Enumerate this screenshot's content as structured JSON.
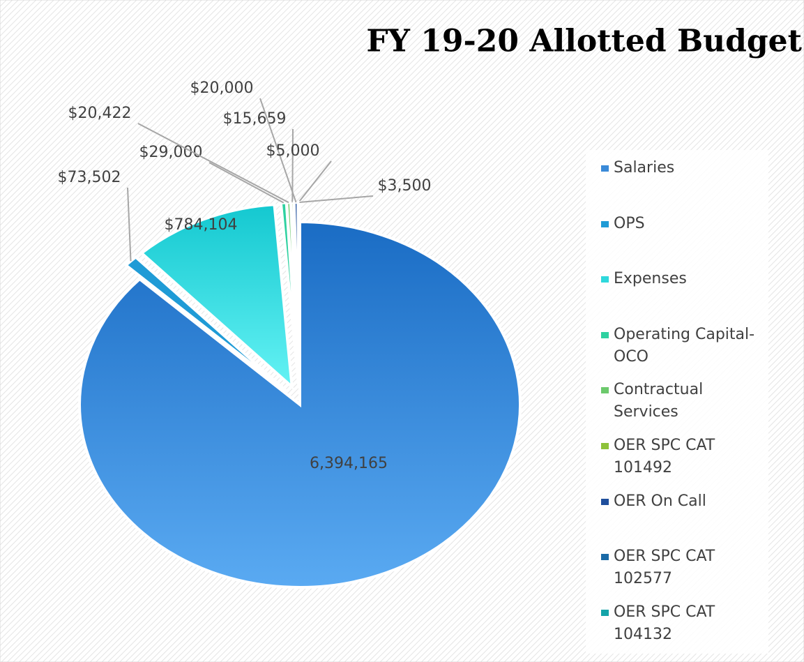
{
  "chart_data": {
    "type": "pie",
    "title": "FY 19-20  Allotted Budget",
    "categories": [
      "Salaries",
      "OPS",
      "Expenses",
      "Operating Capital- OCO",
      "Contractual Services",
      "OER SPC CAT 101492",
      "OER On Call",
      "OER SPC CAT 102577",
      "OER SPC CAT 104132"
    ],
    "values": [
      6394165,
      73502,
      784104,
      29000,
      20422,
      15659,
      20000,
      5000,
      3500
    ],
    "value_labels": [
      "6,394,165",
      "$73,502",
      "$784,104",
      "$29,000",
      "$20,422",
      "$15,659",
      "$20,000",
      "$5,000",
      "$3,500"
    ],
    "colors": [
      "#3a8ad8",
      "#1f9bd6",
      "#2fd8dc",
      "#2ed1a0",
      "#6cc96c",
      "#8dc23a",
      "#1f4f9c",
      "#1a6aa6",
      "#14a3a8"
    ],
    "legend": "right"
  }
}
